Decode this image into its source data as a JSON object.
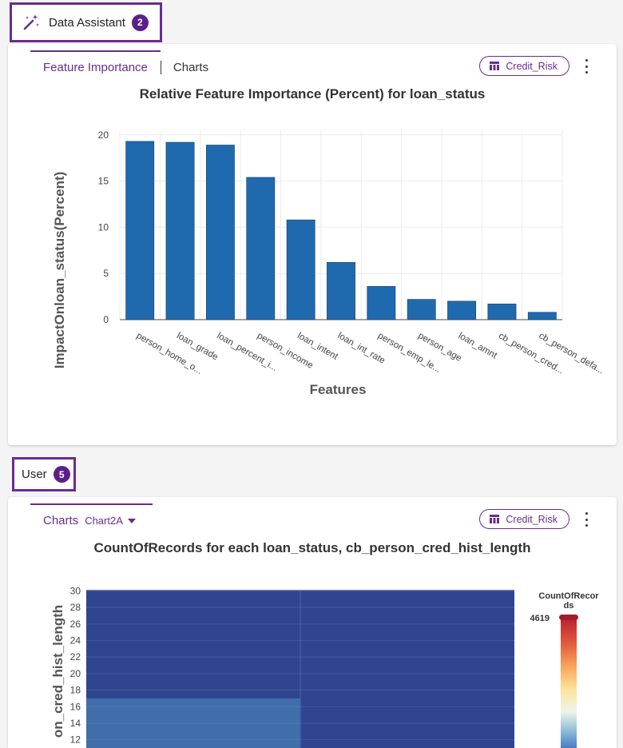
{
  "assistant_message": {
    "sender": "Data Assistant",
    "count": "2",
    "icon": "magic-wand-icon",
    "card": {
      "tabs": [
        {
          "label": "Feature Importance",
          "active": true
        },
        {
          "label": "Charts",
          "active": false
        }
      ],
      "dataset": "Credit_Risk",
      "dataset_icon": "table-icon",
      "menu_icon": "kebab-menu-icon"
    }
  },
  "user_message": {
    "sender": "User",
    "count": "5",
    "card": {
      "tab": "Charts",
      "chart_name": "Chart2A",
      "dataset": "Credit_Risk",
      "dataset_icon": "table-icon",
      "menu_icon": "kebab-menu-icon"
    }
  },
  "colors": {
    "accent": "#6a2c91",
    "badge": "#5b1f8a",
    "bar": "#1f6aaf",
    "heatmap_dark": "#2f4590",
    "heatmap_light": "#3f6eaa"
  },
  "chart_data": [
    {
      "type": "bar",
      "title": "Relative Feature Importance (Percent) for loan_status",
      "xlabel": "Features",
      "ylabel": "ImpactOnloan_status(Percent)",
      "categories": [
        "person_home_o...",
        "loan_grade",
        "loan_percent_i...",
        "person_income",
        "loan_intent",
        "loan_int_rate",
        "person_emp_le...",
        "person_age",
        "loan_amnt",
        "cb_person_cred...",
        "cb_person_defa..."
      ],
      "values": [
        19.3,
        19.2,
        18.9,
        15.4,
        10.8,
        6.2,
        3.6,
        2.2,
        2.0,
        1.7,
        0.8
      ],
      "ylim": [
        0,
        20.5
      ],
      "yticks": [
        0,
        5,
        10,
        15,
        20
      ],
      "grid": true
    },
    {
      "type": "heatmap",
      "title": "CountOfRecords for each loan_status, cb_person_cred_hist_length",
      "ylabel": "cb_person_cred_hist_length",
      "ylabel_visible": "on_cred_hist_length",
      "yticks": [
        12,
        14,
        16,
        18,
        20,
        22,
        24,
        26,
        28,
        30
      ],
      "y_visible_range": [
        11,
        31
      ],
      "columns": 2,
      "light_block": {
        "column": 0,
        "y_from": 11,
        "y_to": 17
      },
      "colorbar": {
        "title": "CountOfRecords",
        "title_line1": "CountOfRecor",
        "title_line2": "ds",
        "max": "4619"
      }
    }
  ]
}
